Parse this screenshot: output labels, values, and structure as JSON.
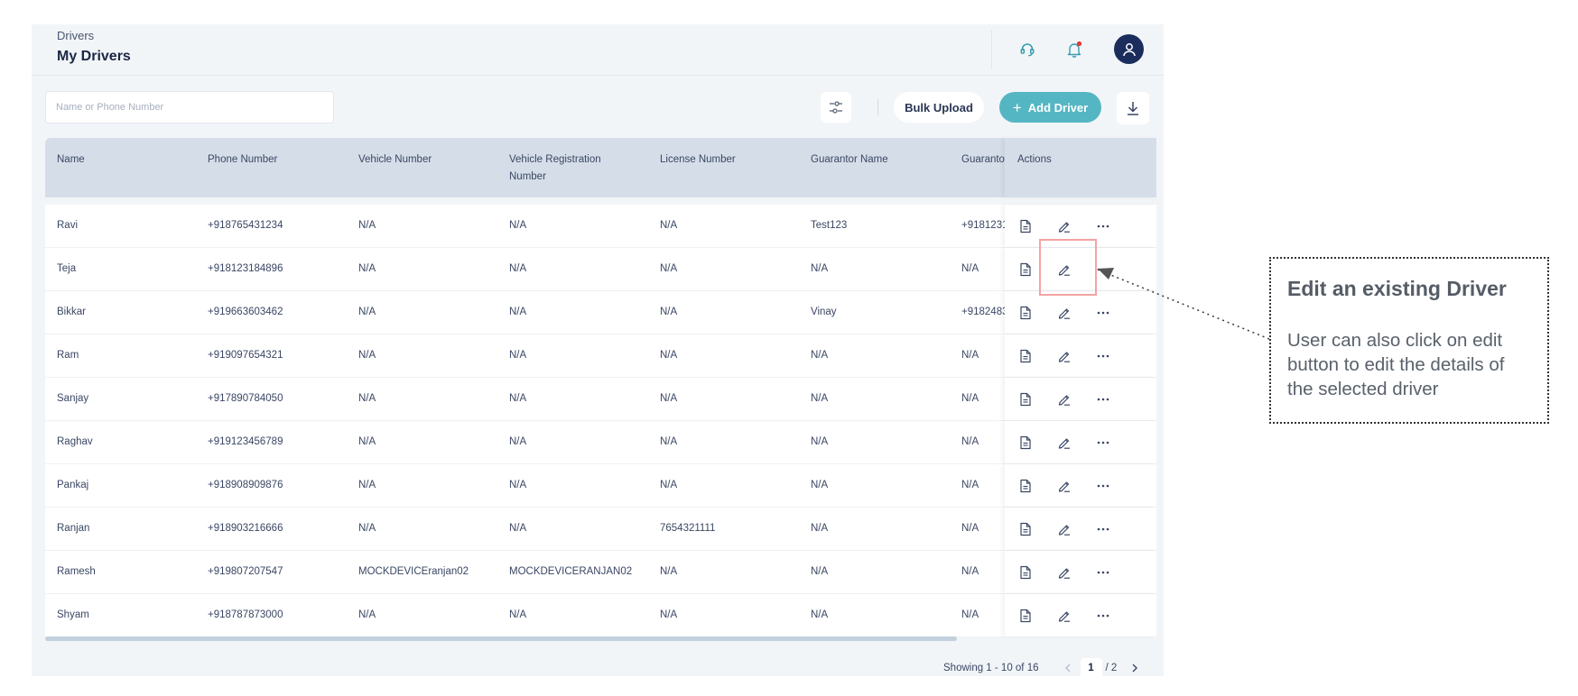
{
  "header": {
    "breadcrumb": "Drivers",
    "title": "My Drivers",
    "icons": [
      "headset-support-icon",
      "bell-notification-icon",
      "user-avatar-icon"
    ],
    "notification_dot_color": "#e53935",
    "avatar_color": "#1a2d5c"
  },
  "toolbar": {
    "search_placeholder": "Name or Phone Number",
    "bulk_upload_label": "Bulk Upload",
    "add_driver_label": "Add Driver",
    "add_driver_color": "#55b6c3"
  },
  "table": {
    "columns": [
      "Name",
      "Phone Number",
      "Vehicle Number",
      "Vehicle Registration Number",
      "License Number",
      "Guarantor Name",
      "Guaranto",
      "Actions"
    ],
    "rows": [
      {
        "name": "Ravi",
        "phone": "+918765431234",
        "vehicle": "N/A",
        "registration": "N/A",
        "license": "N/A",
        "guarantor": "Test123",
        "guarantor_phone": "+9181231Ɛ"
      },
      {
        "name": "Teja",
        "phone": "+918123184896",
        "vehicle": "N/A",
        "registration": "N/A",
        "license": "N/A",
        "guarantor": "N/A",
        "guarantor_phone": "N/A"
      },
      {
        "name": "Bikkar",
        "phone": "+919663603462",
        "vehicle": "N/A",
        "registration": "N/A",
        "license": "N/A",
        "guarantor": "Vinay",
        "guarantor_phone": "+9182483"
      },
      {
        "name": "Ram",
        "phone": "+919097654321",
        "vehicle": "N/A",
        "registration": "N/A",
        "license": "N/A",
        "guarantor": "N/A",
        "guarantor_phone": "N/A"
      },
      {
        "name": "Sanjay",
        "phone": "+917890784050",
        "vehicle": "N/A",
        "registration": "N/A",
        "license": "N/A",
        "guarantor": "N/A",
        "guarantor_phone": "N/A"
      },
      {
        "name": "Raghav",
        "phone": "+919123456789",
        "vehicle": "N/A",
        "registration": "N/A",
        "license": "N/A",
        "guarantor": "N/A",
        "guarantor_phone": "N/A"
      },
      {
        "name": "Pankaj",
        "phone": "+918908909876",
        "vehicle": "N/A",
        "registration": "N/A",
        "license": "N/A",
        "guarantor": "N/A",
        "guarantor_phone": "N/A"
      },
      {
        "name": "Ranjan",
        "phone": "+918903216666",
        "vehicle": "N/A",
        "registration": "N/A",
        "license": "7654321111",
        "guarantor": "N/A",
        "guarantor_phone": "N/A"
      },
      {
        "name": "Ramesh",
        "phone": "+919807207547",
        "vehicle": "MOCKDEVICEranjan02",
        "registration": "MOCKDEVICERANJAN02",
        "license": "N/A",
        "guarantor": "N/A",
        "guarantor_phone": "N/A"
      },
      {
        "name": "Shyam",
        "phone": "+918787873000",
        "vehicle": "N/A",
        "registration": "N/A",
        "license": "N/A",
        "guarantor": "N/A",
        "guarantor_phone": "N/A"
      }
    ],
    "row_action_icons": [
      "document-icon",
      "edit-pencil-icon",
      "more-options-icon"
    ]
  },
  "pagination": {
    "showing": "Showing 1 - 10 of 16",
    "current_page": "1",
    "total_pages": "/ 2"
  },
  "callout": {
    "title": "Edit an existing Driver",
    "body": "User can also click on edit button to edit the details of the selected driver",
    "highlight_color": "#f4a3a3"
  }
}
